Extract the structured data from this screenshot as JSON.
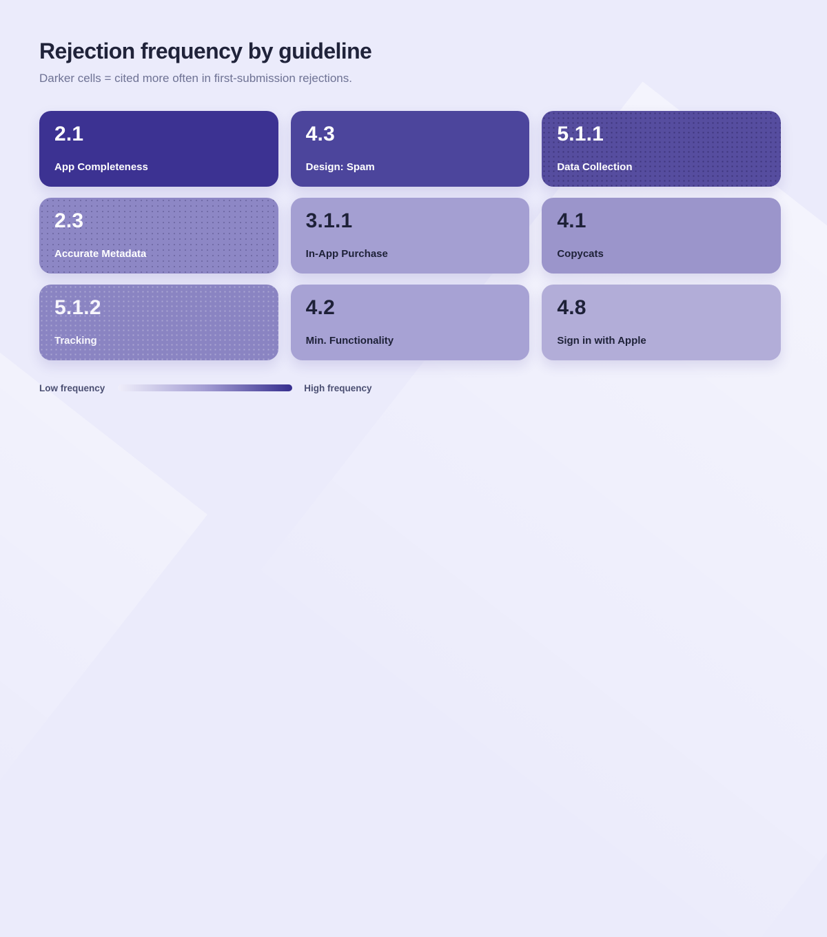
{
  "page": {
    "title": "Rejection frequency by guideline",
    "subtitle": "Darker cells = cited more often in first-submission rejections."
  },
  "legend": {
    "low_label": "Low frequency",
    "high_label": "High frequency",
    "gradient_start": "#efeefa",
    "gradient_mid": "#a39dd3",
    "gradient_end": "#362e8e"
  },
  "cells": [
    {
      "code": "2.1",
      "name": "App Completeness",
      "bg": "#3c3292",
      "text_color": "#ffffff",
      "texture": "none"
    },
    {
      "code": "4.3",
      "name": "Design: Spam",
      "bg": "#4c459c",
      "text_color": "#ffffff",
      "texture": "none"
    },
    {
      "code": "5.1.1",
      "name": "Data Collection",
      "bg": "#564d9f",
      "text_color": "#ffffff",
      "texture": "dark-dots"
    },
    {
      "code": "2.3",
      "name": "Accurate Metadata",
      "bg": "#8d87c5",
      "text_color": "#ffffff",
      "texture": "mid-dots"
    },
    {
      "code": "3.1.1",
      "name": "In-App Purchase",
      "bg": "#a49fd2",
      "text_color": "#1e2138",
      "texture": "none"
    },
    {
      "code": "4.1",
      "name": "Copycats",
      "bg": "#9b95cb",
      "text_color": "#1e2138",
      "texture": "none"
    },
    {
      "code": "5.1.2",
      "name": "Tracking",
      "bg": "#8a84c2",
      "text_color": "#f7f6fc",
      "texture": "light-dots"
    },
    {
      "code": "4.2",
      "name": "Min. Functionality",
      "bg": "#a7a2d4",
      "text_color": "#1e2138",
      "texture": "none"
    },
    {
      "code": "4.8",
      "name": "Sign in with Apple",
      "bg": "#b2add8",
      "text_color": "#1e2138",
      "texture": "none"
    }
  ],
  "chart_data": {
    "type": "heatmap",
    "title": "Rejection frequency by guideline",
    "subtitle": "Darker cells = cited more often in first-submission rejections.",
    "grid": [
      3,
      3
    ],
    "legend": {
      "low": "Low frequency",
      "high": "High frequency"
    },
    "value_scale": "relative_frequency 0-1, estimated from cell darkness",
    "cells": [
      {
        "guideline": "2.1",
        "label": "App Completeness",
        "row": 0,
        "col": 0,
        "relative_frequency": 1.0
      },
      {
        "guideline": "4.3",
        "label": "Design: Spam",
        "row": 0,
        "col": 1,
        "relative_frequency": 0.92
      },
      {
        "guideline": "5.1.1",
        "label": "Data Collection",
        "row": 0,
        "col": 2,
        "relative_frequency": 0.85
      },
      {
        "guideline": "2.3",
        "label": "Accurate Metadata",
        "row": 1,
        "col": 0,
        "relative_frequency": 0.55
      },
      {
        "guideline": "3.1.1",
        "label": "In-App Purchase",
        "row": 1,
        "col": 1,
        "relative_frequency": 0.4
      },
      {
        "guideline": "4.1",
        "label": "Copycats",
        "row": 1,
        "col": 2,
        "relative_frequency": 0.45
      },
      {
        "guideline": "5.1.2",
        "label": "Tracking",
        "row": 2,
        "col": 0,
        "relative_frequency": 0.58
      },
      {
        "guideline": "4.2",
        "label": "Min. Functionality",
        "row": 2,
        "col": 1,
        "relative_frequency": 0.38
      },
      {
        "guideline": "4.8",
        "label": "Sign in with Apple",
        "row": 2,
        "col": 2,
        "relative_frequency": 0.3
      }
    ]
  }
}
